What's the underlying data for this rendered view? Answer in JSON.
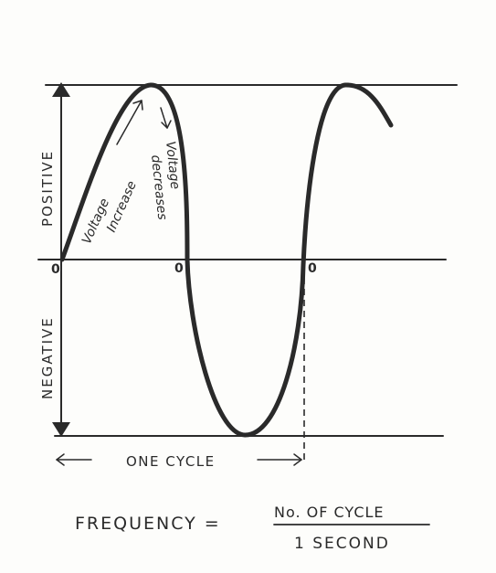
{
  "labels": {
    "positive": "POSITIVE",
    "negative": "NEGATIVE",
    "zero_start": "0",
    "zero_mid": "0",
    "zero_end": "0",
    "voltage_increase_1": "Voltage",
    "voltage_increase_2": "Increase",
    "voltage_decreases_1": "Voltage",
    "voltage_decreases_2": "decreases",
    "one_cycle": "ONE CYCLE"
  },
  "formula": {
    "lhs": "FREQUENCY =",
    "numerator": "No. OF CYCLE",
    "denominator": "1 SECOND"
  },
  "colors": {
    "ink": "#2a2a2a",
    "paper": "#fdfdfb"
  }
}
